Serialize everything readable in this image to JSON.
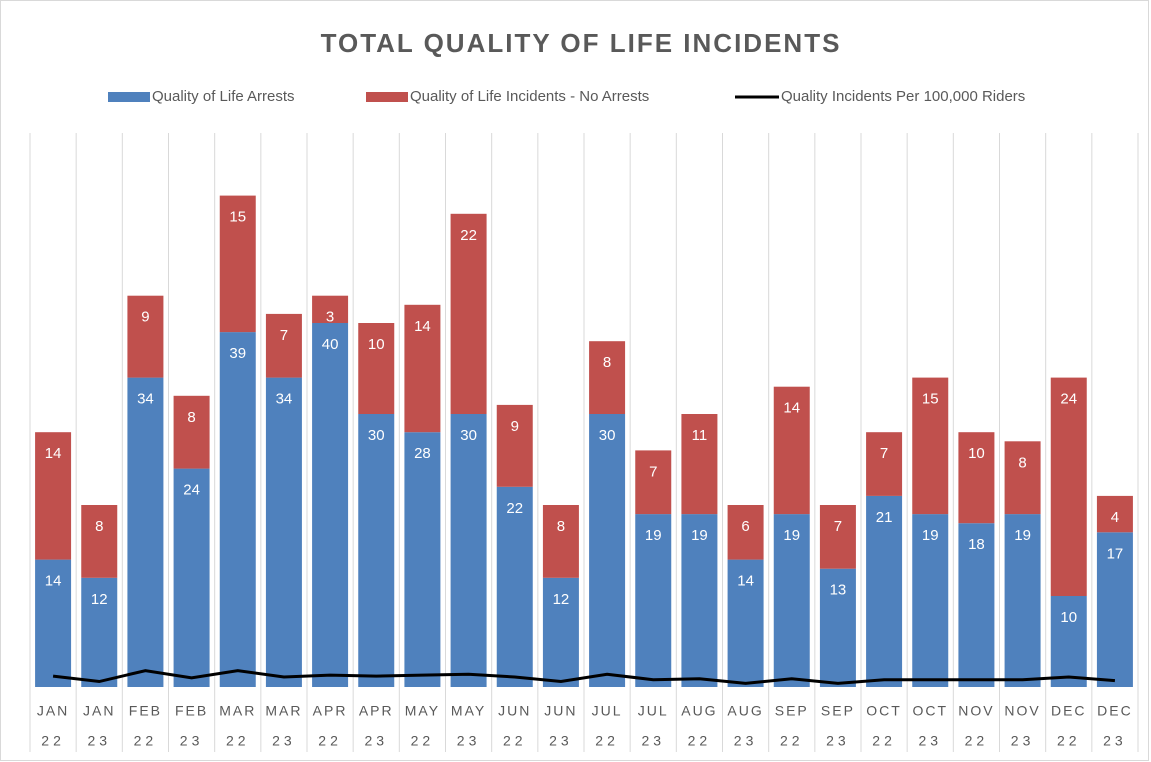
{
  "chart_data": {
    "type": "bar",
    "stacked": true,
    "title": "TOTAL QUALITY OF LIFE INCIDENTS",
    "categories": [
      [
        "JAN",
        "22"
      ],
      [
        "JAN",
        "23"
      ],
      [
        "FEB",
        "22"
      ],
      [
        "FEB",
        "23"
      ],
      [
        "MAR",
        "22"
      ],
      [
        "MAR",
        "23"
      ],
      [
        "APR",
        "22"
      ],
      [
        "APR",
        "23"
      ],
      [
        "MAY",
        "22"
      ],
      [
        "MAY",
        "23"
      ],
      [
        "JUN",
        "22"
      ],
      [
        "JUN",
        "23"
      ],
      [
        "JUL",
        "22"
      ],
      [
        "JUL",
        "23"
      ],
      [
        "AUG",
        "22"
      ],
      [
        "AUG",
        "23"
      ],
      [
        "SEP",
        "22"
      ],
      [
        "SEP",
        "23"
      ],
      [
        "OCT",
        "22"
      ],
      [
        "OCT",
        "23"
      ],
      [
        "NOV",
        "22"
      ],
      [
        "NOV",
        "23"
      ],
      [
        "DEC",
        "22"
      ],
      [
        "DEC",
        "23"
      ]
    ],
    "series": [
      {
        "name": "Quality of Life Arrests",
        "type": "bar",
        "color": "#4f81bd",
        "values": [
          14,
          12,
          34,
          24,
          39,
          34,
          40,
          30,
          28,
          30,
          22,
          12,
          30,
          19,
          19,
          14,
          19,
          13,
          21,
          19,
          18,
          19,
          10,
          17
        ]
      },
      {
        "name": "Quality of Life Incidents - No Arrests",
        "type": "bar",
        "color": "#c0504d",
        "values": [
          14,
          8,
          9,
          8,
          15,
          7,
          3,
          10,
          14,
          22,
          9,
          8,
          8,
          7,
          11,
          6,
          14,
          7,
          7,
          15,
          10,
          8,
          24,
          4
        ]
      },
      {
        "name": "Quality Incidents Per 100,000 Riders",
        "type": "line",
        "color": "#000000",
        "values": [
          1.2,
          0.6,
          1.8,
          1.0,
          1.8,
          1.1,
          1.3,
          1.2,
          1.3,
          1.4,
          1.1,
          0.6,
          1.4,
          0.8,
          0.9,
          0.4,
          0.9,
          0.4,
          0.8,
          0.8,
          0.8,
          0.8,
          1.1,
          0.7
        ]
      }
    ],
    "ylim": [
      0,
      60
    ],
    "legend": "top"
  }
}
